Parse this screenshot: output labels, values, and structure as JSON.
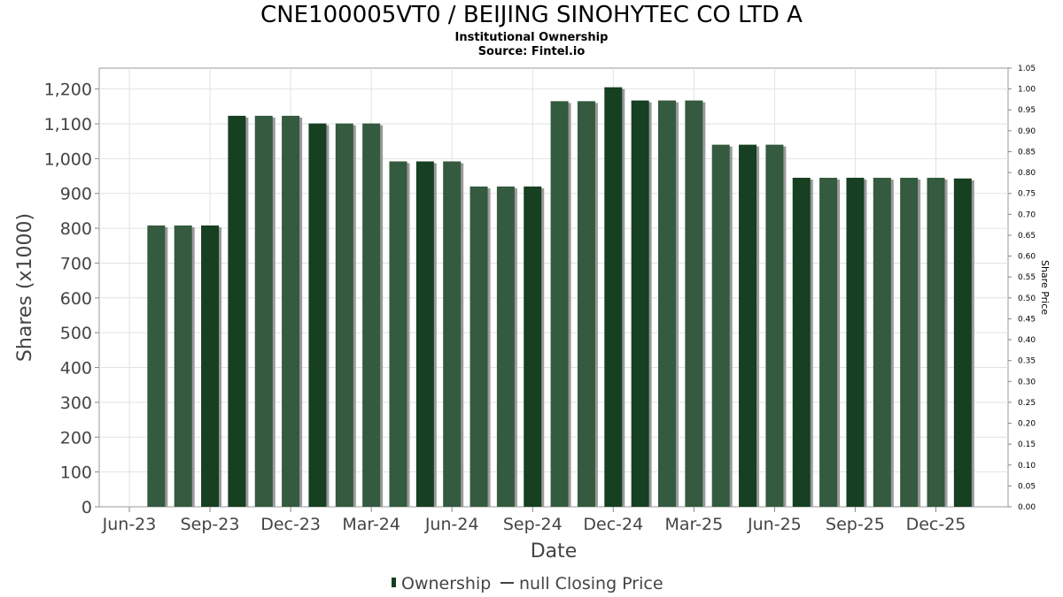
{
  "header": {
    "title": "CNE100005VT0 / BEIJING SINOHYTEC CO LTD A",
    "subtitle": "Institutional Ownership",
    "source": "Source: Fintel.io"
  },
  "legend": {
    "ownership_label": "Ownership",
    "price_label": "null Closing Price"
  },
  "colors": {
    "bar_dark": "#173f21",
    "bar_light": "#345a3f",
    "bar_shadow": "#9a9a9a",
    "grid": "#e2e2e2"
  },
  "chart_data": {
    "type": "bar",
    "xlabel": "Date",
    "ylabel": "Shares (x1000)",
    "y2label": "Share Price",
    "ylim": [
      0,
      1260
    ],
    "y2lim": [
      0,
      1.05
    ],
    "yticks": [
      "0",
      "100",
      "200",
      "300",
      "400",
      "500",
      "600",
      "700",
      "800",
      "900",
      "1,000",
      "1,100",
      "1,200"
    ],
    "y2ticks": [
      "0.00",
      "0.05",
      "0.10",
      "0.15",
      "0.20",
      "0.25",
      "0.30",
      "0.35",
      "0.40",
      "0.45",
      "0.50",
      "0.55",
      "0.60",
      "0.65",
      "0.70",
      "0.75",
      "0.80",
      "0.85",
      "0.90",
      "0.95",
      "1.00",
      "1.05"
    ],
    "xticks": [
      "Jun-23",
      "Sep-23",
      "Dec-23",
      "Mar-24",
      "Jun-24",
      "Sep-24",
      "Dec-24",
      "Mar-25",
      "Jun-25",
      "Sep-25",
      "Dec-25"
    ],
    "grid": true,
    "legend_position": "bottom-center",
    "series": [
      {
        "name": "Ownership",
        "values": [
          808,
          808,
          808,
          1123,
          1123,
          1123,
          1101,
          1101,
          1101,
          992,
          992,
          992,
          920,
          920,
          920,
          1165,
          1165,
          1205,
          1167,
          1167,
          1167,
          1040,
          1040,
          1040,
          945,
          945,
          945,
          945,
          945,
          945,
          943
        ]
      }
    ]
  }
}
